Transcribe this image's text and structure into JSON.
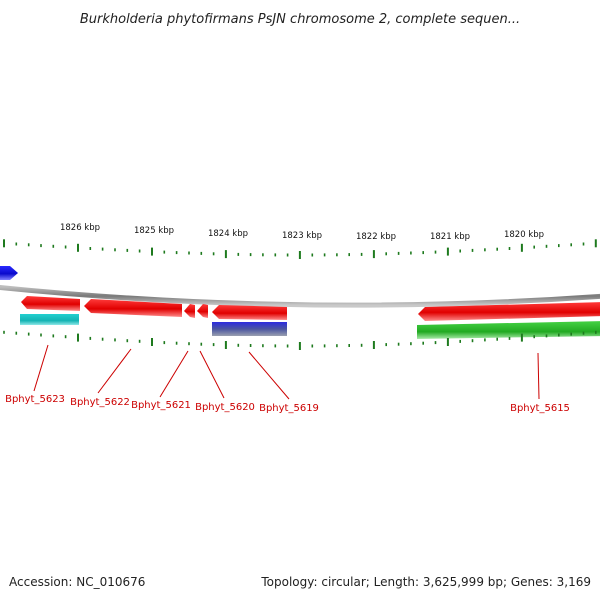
{
  "title": "Burkholderia phytofirmans PsJN chromosome 2, complete sequen...",
  "kbp_labels": [
    "1826 kbp",
    "1825 kbp",
    "1824 kbp",
    "1823 kbp",
    "1822 kbp",
    "1821 kbp",
    "1820 kbp"
  ],
  "gene_labels": [
    "Bphyt_5623",
    "Bphyt_5622",
    "Bphyt_5621",
    "Bphyt_5620",
    "Bphyt_5619",
    "Bphyt_5615"
  ],
  "footer": {
    "accession": "Accession: NC_010676",
    "summary": "Topology: circular; Length: 3,625,999 bp; Genes: 3,169"
  },
  "colors": {
    "gene_red": "#ee1111",
    "gene_cyan": "#1fc4c4",
    "gene_blue": "#1010dd",
    "gene_green": "#2fbf2f",
    "backbone": "#8a8a8a",
    "ticks": "#1e7a1e",
    "label_red": "#cc0000"
  }
}
